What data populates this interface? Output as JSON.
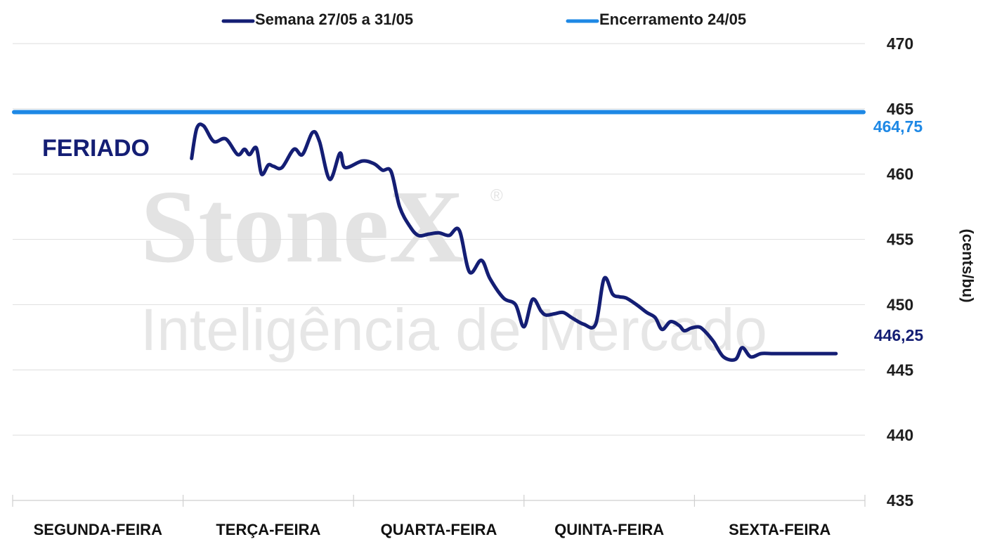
{
  "colors": {
    "series_week": "#141e74",
    "series_close": "#1e88e5",
    "grid": "#dedede",
    "watermark": "#e3e3e3"
  },
  "watermark": {
    "brand": "StoneX",
    "registered": "®",
    "tagline": "Inteligência de Mercado"
  },
  "chart_data": {
    "type": "line",
    "ylabel": "(cents/bu)",
    "ylim": [
      435,
      470
    ],
    "yticks": [
      "470",
      "465",
      "460",
      "455",
      "450",
      "445",
      "440",
      "435"
    ],
    "categories": [
      "SEGUNDA-FEIRA",
      "TERÇA-FEIRA",
      "QUARTA-FEIRA",
      "QUINTA-FEIRA",
      "SEXTA-FEIRA"
    ],
    "grid": true,
    "legend_position": "top",
    "annotations": {
      "holiday": "FERIADO",
      "close_label": "464,75",
      "last_label": "446,25"
    },
    "series": [
      {
        "name": "Semana 27/05 a 31/05",
        "color": "#141e74",
        "x": [
          1.05,
          1.08,
          1.12,
          1.18,
          1.25,
          1.32,
          1.36,
          1.39,
          1.43,
          1.46,
          1.5,
          1.53,
          1.58,
          1.65,
          1.7,
          1.76,
          1.8,
          1.86,
          1.92,
          1.95,
          2.05,
          2.12,
          2.17,
          2.22,
          2.27,
          2.33,
          2.38,
          2.44,
          2.5,
          2.56,
          2.62,
          2.68,
          2.75,
          2.8,
          2.88,
          2.95,
          3.0,
          3.05,
          3.1,
          3.13,
          3.18,
          3.23,
          3.28,
          3.35,
          3.42,
          3.47,
          3.52,
          3.56,
          3.6,
          3.66,
          3.72,
          3.77,
          3.81,
          3.86,
          3.91,
          3.94,
          3.98,
          4.02,
          4.05,
          4.11,
          4.17,
          4.24,
          4.28,
          4.33,
          4.39,
          4.45,
          4.52,
          4.58,
          4.63,
          4.68,
          4.73,
          4.78,
          4.83
        ],
        "values": [
          461.2,
          463.5,
          463.7,
          462.5,
          462.7,
          461.5,
          461.9,
          461.5,
          462.0,
          460.0,
          460.7,
          460.6,
          460.5,
          461.9,
          461.5,
          463.2,
          462.5,
          459.6,
          461.6,
          460.5,
          461.0,
          460.8,
          460.3,
          460.2,
          457.5,
          456.0,
          455.3,
          455.4,
          455.5,
          455.3,
          455.7,
          452.5,
          453.4,
          452.0,
          450.5,
          450.0,
          448.3,
          450.4,
          449.5,
          449.2,
          449.3,
          449.4,
          449.0,
          448.5,
          448.5,
          452.0,
          450.8,
          450.6,
          450.5,
          450.0,
          449.4,
          449.0,
          448.1,
          448.7,
          448.4,
          448.0,
          448.2,
          448.3,
          448.1,
          447.2,
          446.0,
          445.8,
          446.7,
          446.0,
          446.25,
          446.25,
          446.25,
          446.25,
          446.25,
          446.25,
          446.25,
          446.25,
          446.25
        ]
      },
      {
        "name": "Encerramento 24/05",
        "color": "#1e88e5",
        "x": [
          0,
          5
        ],
        "values": [
          464.75,
          464.75
        ]
      }
    ]
  }
}
